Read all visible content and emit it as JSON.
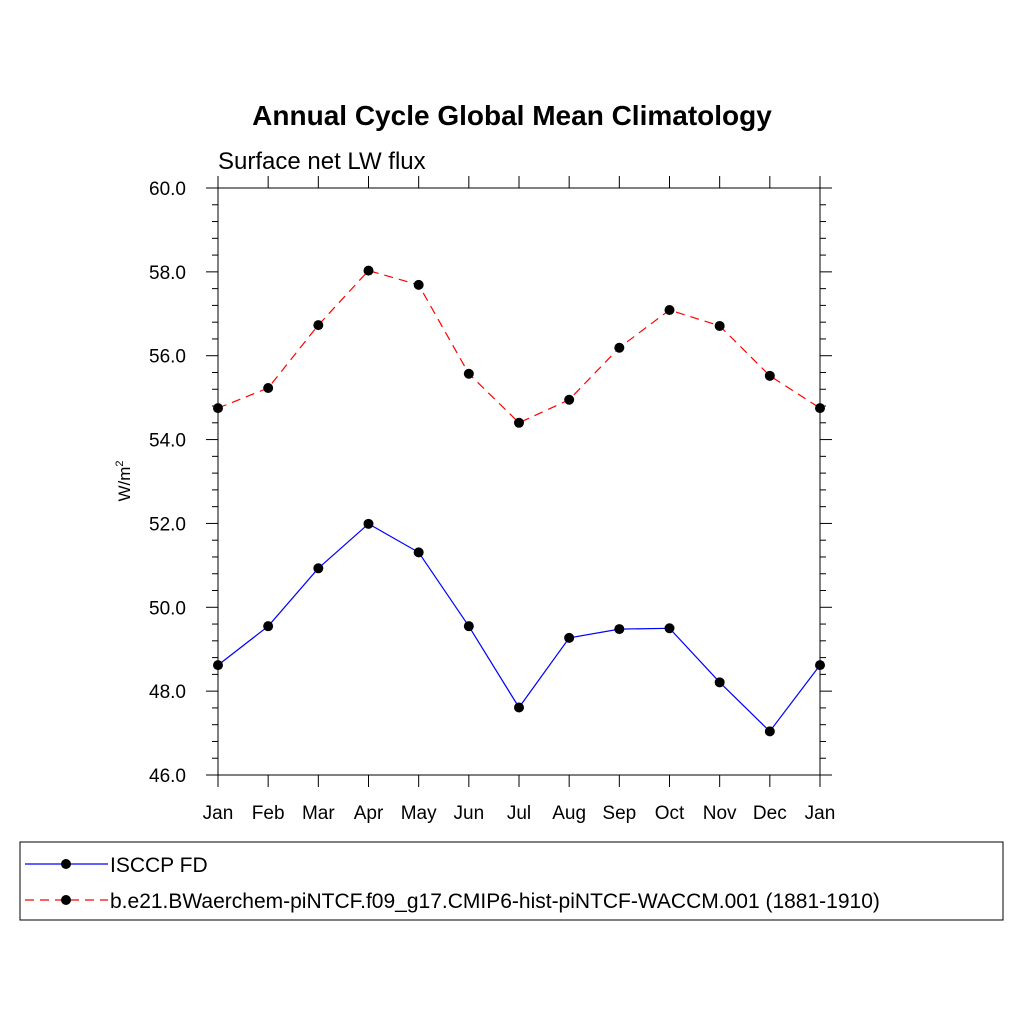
{
  "chart_data": {
    "type": "line",
    "title": "Annual Cycle Global Mean Climatology",
    "subtitle": "Surface net LW flux",
    "ylabel": "W/m",
    "ylabel_sup": "2",
    "xlabel": "",
    "categories": [
      "Jan",
      "Feb",
      "Mar",
      "Apr",
      "May",
      "Jun",
      "Jul",
      "Aug",
      "Sep",
      "Oct",
      "Nov",
      "Dec",
      "Jan"
    ],
    "ylim": [
      46.0,
      60.0
    ],
    "yticks": [
      "46.0",
      "48.0",
      "50.0",
      "52.0",
      "54.0",
      "56.0",
      "58.0",
      "60.0"
    ],
    "grid": false,
    "legend_position": "bottom",
    "series": [
      {
        "name": "ISCCP FD",
        "color": "#0000ff",
        "line_style": "solid",
        "marker": "circle",
        "values": [
          48.62,
          49.55,
          50.93,
          51.99,
          51.31,
          49.55,
          47.61,
          49.27,
          49.48,
          49.5,
          48.21,
          47.04,
          48.62
        ]
      },
      {
        "name": "b.e21.BWaerchem-piNTCF.f09_g17.CMIP6-hist-piNTCF-WACCM.001 (1881-1910)",
        "color": "#ff0000",
        "line_style": "dashed",
        "marker": "circle",
        "values": [
          54.75,
          55.23,
          56.73,
          58.03,
          57.69,
          55.57,
          54.4,
          54.95,
          56.19,
          57.09,
          56.71,
          55.52,
          54.75
        ]
      }
    ]
  }
}
